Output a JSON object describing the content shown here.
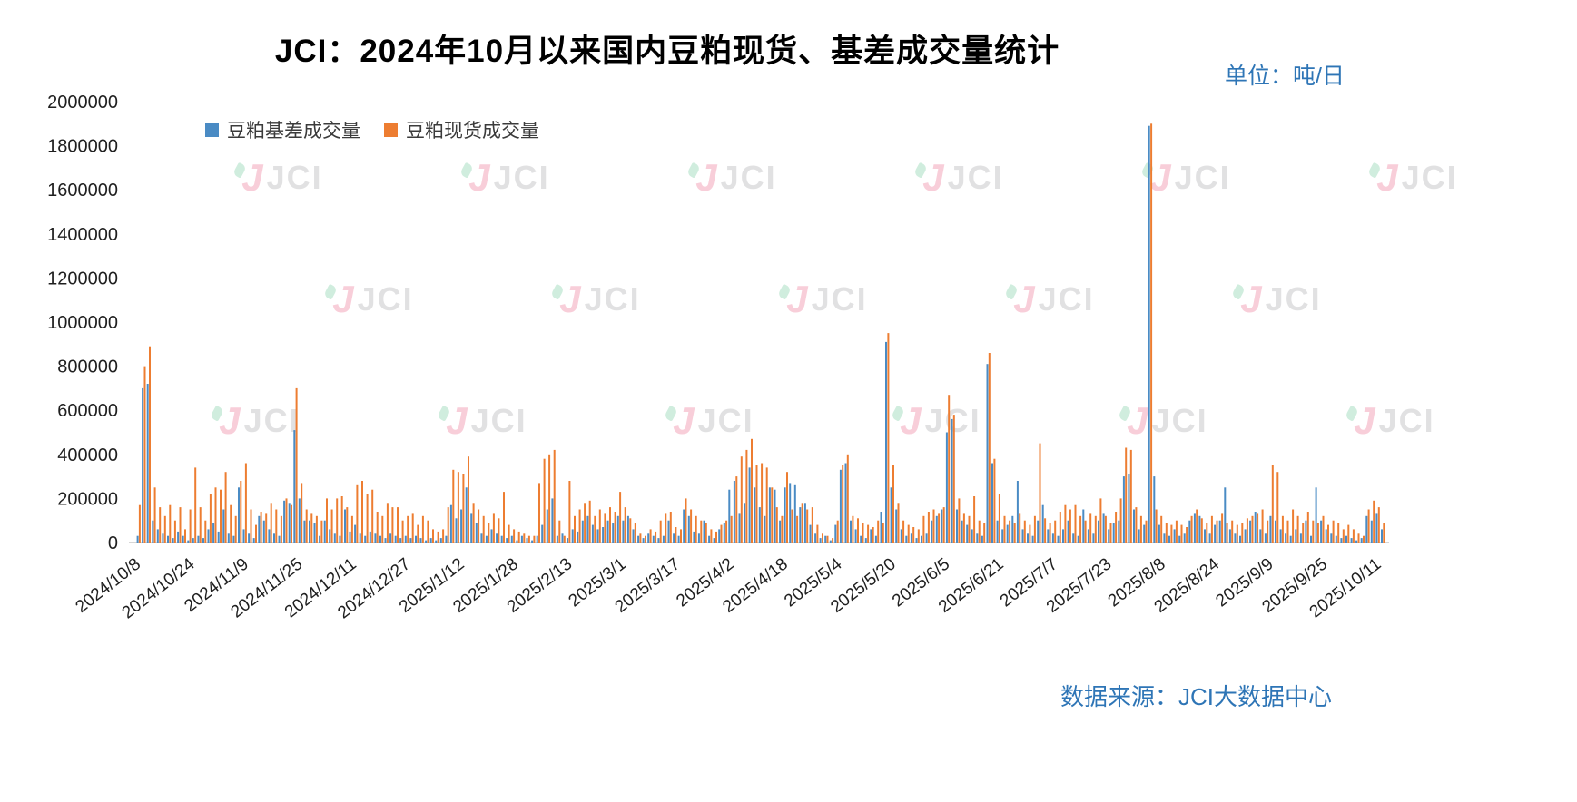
{
  "title": "JCI：2024年10月以来国内豆粕现货、基差成交量统计",
  "unit_label": "单位：吨/日",
  "source_label": "数据来源：JCI大数据中心",
  "watermark": {
    "logo": "J",
    "text": "JCI"
  },
  "colors": {
    "basis": "#4A8BC4",
    "spot": "#ED7D31",
    "accent_text": "#2E75B6"
  },
  "chart_data": {
    "type": "bar",
    "title": "JCI：2024年10月以来国内豆粕现货、基差成交量统计",
    "xlabel": "",
    "ylabel": "吨/日",
    "ylim": [
      0,
      2000000
    ],
    "grid": false,
    "legend_position": "top-left",
    "y_ticks": [
      0,
      200000,
      400000,
      600000,
      800000,
      1000000,
      1200000,
      1400000,
      1600000,
      1800000,
      2000000
    ],
    "x_tick_labels": [
      "2024/10/8",
      "2024/10/24",
      "2024/11/9",
      "2024/11/25",
      "2024/12/11",
      "2024/12/27",
      "2025/1/12",
      "2025/1/28",
      "2025/2/13",
      "2025/3/1",
      "2025/3/17",
      "2025/4/2",
      "2025/4/18",
      "2025/5/4",
      "2025/5/20",
      "2025/6/5",
      "2025/6/21",
      "2025/7/7",
      "2025/7/23",
      "2025/8/8",
      "2025/8/24",
      "2025/9/9",
      "2025/9/25",
      "2025/10/11"
    ],
    "categories": [
      "2024/10/8",
      "2024/10/9",
      "2024/10/10",
      "2024/10/11",
      "2024/10/14",
      "2024/10/15",
      "2024/10/16",
      "2024/10/17",
      "2024/10/18",
      "2024/10/21",
      "2024/10/22",
      "2024/10/23",
      "2024/10/24",
      "2024/10/25",
      "2024/10/28",
      "2024/10/29",
      "2024/10/30",
      "2024/10/31",
      "2024/11/1",
      "2024/11/4",
      "2024/11/5",
      "2024/11/6",
      "2024/11/7",
      "2024/11/8",
      "2024/11/11",
      "2024/11/12",
      "2024/11/13",
      "2024/11/14",
      "2024/11/15",
      "2024/11/18",
      "2024/11/19",
      "2024/11/20",
      "2024/11/21",
      "2024/11/22",
      "2024/11/25",
      "2024/11/26",
      "2024/11/27",
      "2024/11/28",
      "2024/11/29",
      "2024/12/2",
      "2024/12/3",
      "2024/12/4",
      "2024/12/5",
      "2024/12/6",
      "2024/12/9",
      "2024/12/10",
      "2024/12/11",
      "2024/12/12",
      "2024/12/13",
      "2024/12/16",
      "2024/12/17",
      "2024/12/18",
      "2024/12/19",
      "2024/12/20",
      "2024/12/23",
      "2024/12/24",
      "2024/12/25",
      "2024/12/26",
      "2024/12/27",
      "2024/12/30",
      "2024/12/31",
      "2025/1/2",
      "2025/1/3",
      "2025/1/6",
      "2025/1/7",
      "2025/1/8",
      "2025/1/9",
      "2025/1/10",
      "2025/1/13",
      "2025/1/14",
      "2025/1/15",
      "2025/1/16",
      "2025/1/17",
      "2025/1/20",
      "2025/1/21",
      "2025/1/22",
      "2025/1/23",
      "2025/1/24",
      "2025/2/5",
      "2025/2/6",
      "2025/2/7",
      "2025/2/10",
      "2025/2/11",
      "2025/2/12",
      "2025/2/13",
      "2025/2/14",
      "2025/2/17",
      "2025/2/18",
      "2025/2/19",
      "2025/2/20",
      "2025/2/21",
      "2025/2/24",
      "2025/2/25",
      "2025/2/26",
      "2025/2/27",
      "2025/2/28",
      "2025/3/3",
      "2025/3/4",
      "2025/3/5",
      "2025/3/6",
      "2025/3/7",
      "2025/3/10",
      "2025/3/11",
      "2025/3/12",
      "2025/3/13",
      "2025/3/14",
      "2025/3/17",
      "2025/3/18",
      "2025/3/19",
      "2025/3/20",
      "2025/3/21",
      "2025/3/24",
      "2025/3/25",
      "2025/3/26",
      "2025/3/27",
      "2025/3/28",
      "2025/3/31",
      "2025/4/1",
      "2025/4/2",
      "2025/4/3",
      "2025/4/7",
      "2025/4/8",
      "2025/4/9",
      "2025/4/10",
      "2025/4/11",
      "2025/4/14",
      "2025/4/15",
      "2025/4/16",
      "2025/4/17",
      "2025/4/18",
      "2025/4/21",
      "2025/4/22",
      "2025/4/23",
      "2025/4/24",
      "2025/4/25",
      "2025/4/28",
      "2025/4/29",
      "2025/4/30",
      "2025/5/6",
      "2025/5/7",
      "2025/5/8",
      "2025/5/9",
      "2025/5/12",
      "2025/5/13",
      "2025/5/14",
      "2025/5/15",
      "2025/5/16",
      "2025/5/19",
      "2025/5/20",
      "2025/5/21",
      "2025/5/22",
      "2025/5/23",
      "2025/5/26",
      "2025/5/27",
      "2025/5/28",
      "2025/5/29",
      "2025/5/30",
      "2025/6/3",
      "2025/6/4",
      "2025/6/5",
      "2025/6/6",
      "2025/6/9",
      "2025/6/10",
      "2025/6/11",
      "2025/6/12",
      "2025/6/13",
      "2025/6/16",
      "2025/6/17",
      "2025/6/18",
      "2025/6/19",
      "2025/6/20",
      "2025/6/23",
      "2025/6/24",
      "2025/6/25",
      "2025/6/26",
      "2025/6/27",
      "2025/6/30",
      "2025/7/1",
      "2025/7/2",
      "2025/7/3",
      "2025/7/4",
      "2025/7/7",
      "2025/7/8",
      "2025/7/9",
      "2025/7/10",
      "2025/7/11",
      "2025/7/14",
      "2025/7/15",
      "2025/7/16",
      "2025/7/17",
      "2025/7/18",
      "2025/7/21",
      "2025/7/22",
      "2025/7/23",
      "2025/7/24",
      "2025/7/25",
      "2025/7/28",
      "2025/7/29",
      "2025/7/30",
      "2025/7/31",
      "2025/8/1",
      "2025/8/4",
      "2025/8/5",
      "2025/8/6",
      "2025/8/7",
      "2025/8/8",
      "2025/8/11",
      "2025/8/12",
      "2025/8/13",
      "2025/8/14",
      "2025/8/15",
      "2025/8/18",
      "2025/8/19",
      "2025/8/20",
      "2025/8/21",
      "2025/8/22",
      "2025/8/25",
      "2025/8/26",
      "2025/8/27",
      "2025/8/28",
      "2025/8/29",
      "2025/9/1",
      "2025/9/2",
      "2025/9/3",
      "2025/9/4",
      "2025/9/5",
      "2025/9/8",
      "2025/9/9",
      "2025/9/10",
      "2025/9/11",
      "2025/9/12",
      "2025/9/15",
      "2025/9/16",
      "2025/9/17",
      "2025/9/18",
      "2025/9/19",
      "2025/9/22",
      "2025/9/23",
      "2025/9/24",
      "2025/9/25",
      "2025/9/26",
      "2025/9/29",
      "2025/9/30",
      "2025/10/9",
      "2025/10/10",
      "2025/10/11",
      "2025/10/13"
    ],
    "series": [
      {
        "name": "豆粕基差成交量",
        "color": "#4A8BC4",
        "values": [
          30000,
          700000,
          720000,
          100000,
          60000,
          40000,
          30000,
          20000,
          50000,
          30000,
          10000,
          20000,
          30000,
          20000,
          60000,
          90000,
          50000,
          150000,
          40000,
          30000,
          250000,
          60000,
          40000,
          20000,
          120000,
          100000,
          60000,
          40000,
          30000,
          190000,
          180000,
          510000,
          200000,
          100000,
          100000,
          90000,
          30000,
          100000,
          60000,
          40000,
          30000,
          150000,
          50000,
          80000,
          40000,
          30000,
          50000,
          40000,
          30000,
          20000,
          40000,
          30000,
          20000,
          30000,
          20000,
          30000,
          20000,
          10000,
          20000,
          10000,
          20000,
          30000,
          170000,
          110000,
          150000,
          250000,
          130000,
          90000,
          40000,
          30000,
          60000,
          40000,
          30000,
          20000,
          30000,
          10000,
          30000,
          20000,
          10000,
          30000,
          80000,
          150000,
          200000,
          30000,
          40000,
          20000,
          60000,
          50000,
          100000,
          120000,
          80000,
          60000,
          70000,
          100000,
          90000,
          120000,
          100000,
          120000,
          60000,
          30000,
          20000,
          40000,
          30000,
          20000,
          30000,
          100000,
          40000,
          30000,
          150000,
          120000,
          50000,
          40000,
          100000,
          30000,
          20000,
          60000,
          90000,
          240000,
          280000,
          130000,
          180000,
          340000,
          250000,
          160000,
          120000,
          250000,
          240000,
          100000,
          250000,
          270000,
          260000,
          160000,
          180000,
          80000,
          40000,
          20000,
          30000,
          10000,
          80000,
          330000,
          360000,
          100000,
          60000,
          30000,
          20000,
          60000,
          30000,
          140000,
          910000,
          250000,
          150000,
          60000,
          30000,
          40000,
          20000,
          30000,
          40000,
          100000,
          120000,
          150000,
          500000,
          560000,
          150000,
          100000,
          80000,
          60000,
          40000,
          30000,
          810000,
          360000,
          100000,
          60000,
          80000,
          120000,
          280000,
          60000,
          40000,
          30000,
          100000,
          170000,
          60000,
          40000,
          30000,
          60000,
          100000,
          40000,
          30000,
          150000,
          60000,
          40000,
          100000,
          130000,
          60000,
          90000,
          100000,
          300000,
          310000,
          150000,
          60000,
          80000,
          1890000,
          300000,
          80000,
          40000,
          30000,
          60000,
          30000,
          40000,
          100000,
          130000,
          120000,
          60000,
          40000,
          80000,
          100000,
          250000,
          60000,
          40000,
          30000,
          60000,
          100000,
          140000,
          60000,
          40000,
          120000,
          100000,
          60000,
          40000,
          30000,
          60000,
          40000,
          100000,
          30000,
          250000,
          100000,
          60000,
          40000,
          30000,
          20000,
          30000,
          20000,
          10000,
          20000,
          120000,
          100000,
          130000,
          60000
        ]
      },
      {
        "name": "豆粕现货成交量",
        "color": "#ED7D31",
        "values": [
          170000,
          800000,
          890000,
          250000,
          160000,
          120000,
          170000,
          100000,
          160000,
          60000,
          150000,
          340000,
          160000,
          100000,
          220000,
          250000,
          240000,
          320000,
          170000,
          120000,
          280000,
          360000,
          150000,
          80000,
          140000,
          130000,
          180000,
          150000,
          120000,
          200000,
          170000,
          700000,
          270000,
          150000,
          130000,
          120000,
          100000,
          200000,
          150000,
          200000,
          210000,
          160000,
          120000,
          260000,
          280000,
          220000,
          240000,
          140000,
          120000,
          180000,
          160000,
          160000,
          100000,
          120000,
          130000,
          80000,
          120000,
          100000,
          60000,
          50000,
          60000,
          160000,
          330000,
          320000,
          310000,
          390000,
          180000,
          150000,
          120000,
          90000,
          130000,
          110000,
          230000,
          80000,
          60000,
          50000,
          40000,
          30000,
          30000,
          270000,
          380000,
          400000,
          420000,
          100000,
          30000,
          280000,
          120000,
          150000,
          180000,
          190000,
          120000,
          150000,
          130000,
          160000,
          140000,
          230000,
          160000,
          110000,
          90000,
          40000,
          30000,
          60000,
          50000,
          100000,
          130000,
          140000,
          70000,
          60000,
          200000,
          150000,
          120000,
          100000,
          90000,
          60000,
          50000,
          80000,
          100000,
          120000,
          300000,
          390000,
          420000,
          470000,
          350000,
          360000,
          340000,
          250000,
          160000,
          120000,
          320000,
          150000,
          120000,
          180000,
          150000,
          160000,
          80000,
          40000,
          30000,
          20000,
          100000,
          350000,
          400000,
          120000,
          110000,
          90000,
          80000,
          70000,
          100000,
          90000,
          950000,
          350000,
          180000,
          100000,
          80000,
          70000,
          60000,
          120000,
          140000,
          150000,
          130000,
          160000,
          670000,
          580000,
          200000,
          130000,
          120000,
          210000,
          100000,
          90000,
          860000,
          380000,
          220000,
          120000,
          100000,
          90000,
          130000,
          100000,
          80000,
          120000,
          450000,
          110000,
          90000,
          100000,
          140000,
          170000,
          150000,
          170000,
          120000,
          100000,
          130000,
          120000,
          200000,
          120000,
          90000,
          140000,
          200000,
          430000,
          420000,
          160000,
          120000,
          100000,
          1900000,
          150000,
          120000,
          90000,
          80000,
          100000,
          80000,
          70000,
          120000,
          150000,
          110000,
          90000,
          120000,
          100000,
          130000,
          90000,
          100000,
          80000,
          90000,
          110000,
          120000,
          130000,
          150000,
          100000,
          350000,
          320000,
          120000,
          100000,
          150000,
          120000,
          90000,
          140000,
          100000,
          90000,
          120000,
          80000,
          100000,
          90000,
          60000,
          80000,
          60000,
          40000,
          30000,
          150000,
          190000,
          160000,
          90000
        ]
      }
    ]
  }
}
